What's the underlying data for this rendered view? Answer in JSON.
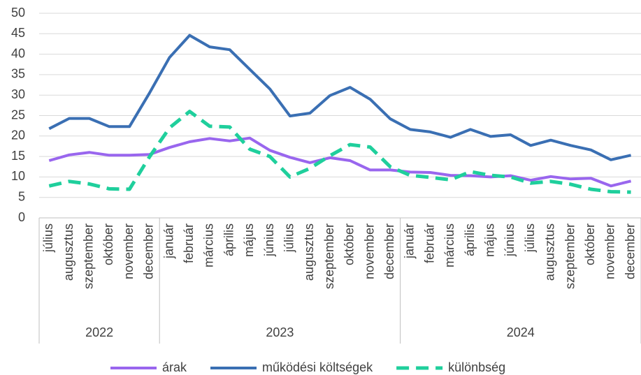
{
  "chart_data": {
    "type": "line",
    "groups": [
      {
        "label": "2022",
        "categories": [
          "július",
          "augusztus",
          "szeptember",
          "október",
          "november",
          "december"
        ]
      },
      {
        "label": "2023",
        "categories": [
          "január",
          "február",
          "március",
          "április",
          "május",
          "június",
          "július",
          "augusztus",
          "szeptember",
          "október",
          "november",
          "december"
        ]
      },
      {
        "label": "2024",
        "categories": [
          "január",
          "február",
          "március",
          "április",
          "május",
          "június",
          "július",
          "augusztus",
          "szeptember",
          "október",
          "november",
          "december"
        ]
      }
    ],
    "ylim": [
      0,
      50
    ],
    "yticks": [
      0,
      5,
      10,
      15,
      20,
      25,
      30,
      35,
      40,
      45,
      50
    ],
    "grid": true,
    "legend": "bottom",
    "series": [
      {
        "name": "árak",
        "color": "#9966ee",
        "dashed": false,
        "values": [
          14,
          15.4,
          16,
          15.3,
          15.3,
          15.5,
          17.2,
          18.6,
          19.4,
          18.8,
          19.5,
          16.5,
          14.8,
          13.5,
          14.7,
          14,
          11.7,
          11.7,
          11.2,
          11.1,
          10.4,
          10.3,
          10,
          10.3,
          9.2,
          10.1,
          9.5,
          9.7,
          7.8,
          9
        ]
      },
      {
        "name": "működési költségek",
        "color": "#3a6fb3",
        "dashed": false,
        "values": [
          21.8,
          24.3,
          24.3,
          22.3,
          22.3,
          30.5,
          39.2,
          44.6,
          41.8,
          41.1,
          36.3,
          31.5,
          24.9,
          25.6,
          29.9,
          31.9,
          29,
          24.2,
          21.6,
          21,
          19.7,
          21.6,
          19.9,
          20.3,
          17.7,
          19,
          17.7,
          16.6,
          14.2,
          15.3
        ]
      },
      {
        "name": "különbség",
        "color": "#1fcf9c",
        "dashed": true,
        "values": [
          7.8,
          8.9,
          8.3,
          7.1,
          7,
          14.9,
          22,
          26,
          22.4,
          22.2,
          16.8,
          15,
          10,
          12.1,
          15.2,
          17.9,
          17.3,
          12.5,
          10.4,
          9.9,
          9.3,
          11.3,
          10.4,
          10,
          8.5,
          8.9,
          8.2,
          7,
          6.4,
          6.3
        ]
      }
    ]
  }
}
